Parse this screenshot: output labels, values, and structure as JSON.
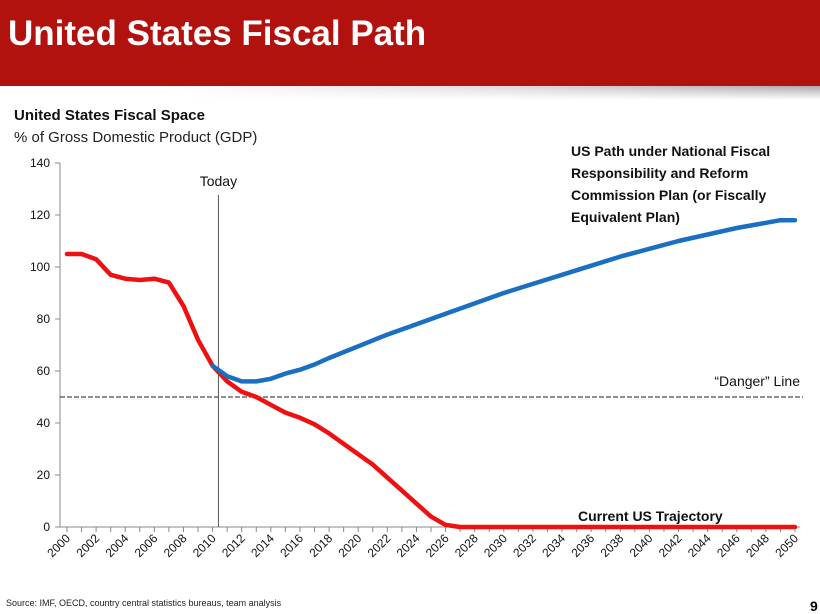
{
  "header": {
    "title": "United States Fiscal Path"
  },
  "footer": {
    "source": "Source: IMF, OECD, country central statistics bureaus, team analysis",
    "page": "9"
  },
  "colors": {
    "banner": "#b2120e",
    "red_series": "#ee1111",
    "blue_series": "#1a6fc0"
  },
  "chart_data": {
    "type": "line",
    "title": "United States Fiscal Space",
    "ylabel": "% of Gross Domestic Product (GDP)",
    "xlabel": "",
    "xlim": [
      2000,
      2050
    ],
    "ylim": [
      0,
      140
    ],
    "yticks": [
      0,
      20,
      40,
      60,
      80,
      100,
      120,
      140
    ],
    "xticks": [
      2000,
      2002,
      2004,
      2006,
      2008,
      2010,
      2012,
      2014,
      2016,
      2018,
      2020,
      2022,
      2024,
      2026,
      2028,
      2030,
      2032,
      2034,
      2036,
      2038,
      2040,
      2042,
      2044,
      2046,
      2048,
      2050
    ],
    "grid": false,
    "today": {
      "label": "Today",
      "x": 2010.4
    },
    "danger": {
      "label": "“Danger” Line",
      "y": 50
    },
    "series": [
      {
        "name": "Current US Trajectory",
        "label": "Current US Trajectory",
        "color": "#ee1111",
        "x": [
          2000,
          2001,
          2002,
          2003,
          2004,
          2005,
          2006,
          2007,
          2008,
          2009,
          2010,
          2011,
          2012,
          2013,
          2014,
          2015,
          2016,
          2017,
          2018,
          2019,
          2020,
          2021,
          2022,
          2023,
          2024,
          2025,
          2026,
          2027,
          2050
        ],
        "y": [
          105,
          105,
          103,
          97,
          95.5,
          95,
          95.5,
          94,
          85,
          72,
          62,
          56,
          52,
          50,
          47,
          44,
          42,
          39.5,
          36,
          32,
          28,
          24,
          19,
          14,
          9,
          4,
          0.8,
          0,
          0
        ]
      },
      {
        "name": "US Path under National Fiscal Responsibility and Reform Commission Plan",
        "label_lines": [
          "US Path under National Fiscal",
          "Responsibility and Reform",
          "Commission Plan (or Fiscally",
          "Equivalent Plan)"
        ],
        "color": "#1a6fc0",
        "x": [
          2010,
          2011,
          2012,
          2013,
          2014,
          2015,
          2016,
          2017,
          2018,
          2020,
          2022,
          2024,
          2026,
          2028,
          2030,
          2032,
          2034,
          2036,
          2038,
          2040,
          2042,
          2044,
          2046,
          2048,
          2049,
          2050
        ],
        "y": [
          62,
          58,
          56,
          56,
          57,
          59,
          60.5,
          62.5,
          65,
          69.5,
          74,
          78,
          82,
          86,
          90,
          93.5,
          97,
          100.5,
          104,
          107,
          110,
          112.5,
          115,
          117,
          118,
          118
        ]
      }
    ]
  }
}
